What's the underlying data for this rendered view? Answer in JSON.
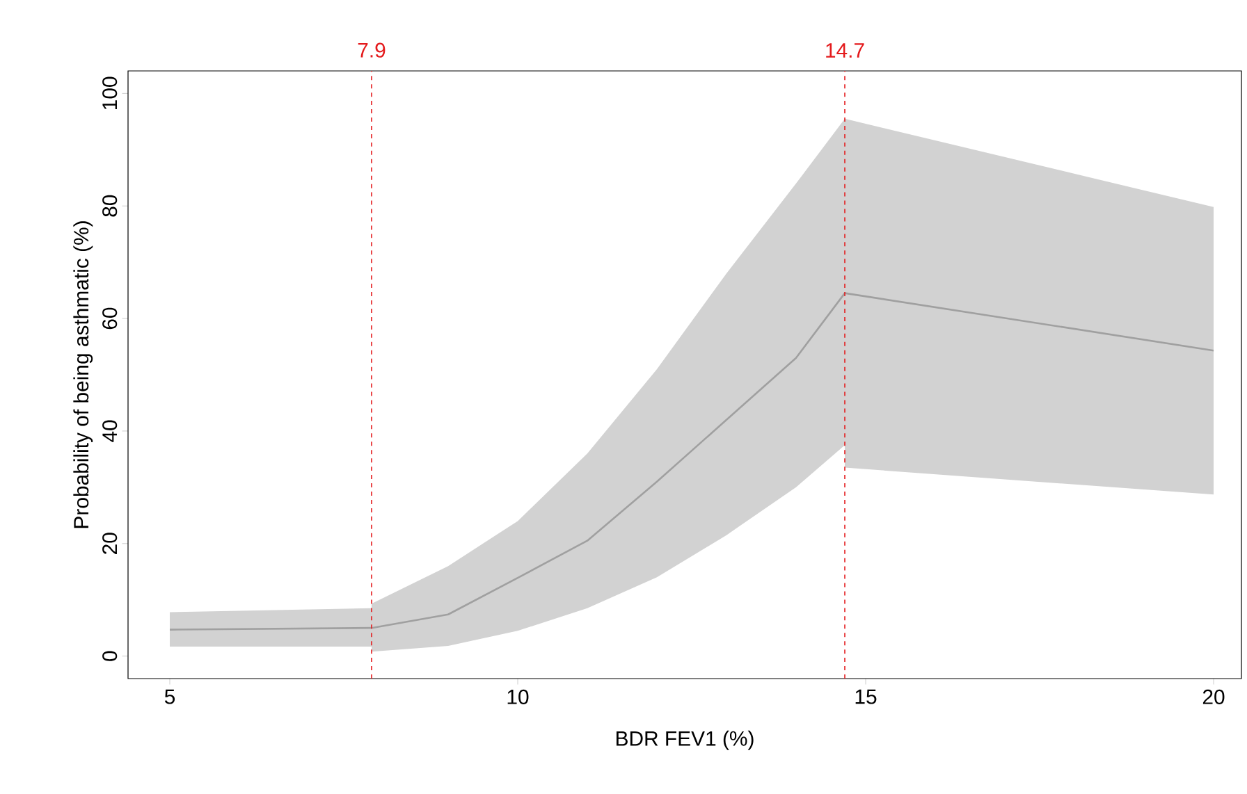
{
  "chart_data": {
    "type": "line",
    "xlabel": "BDR FEV1 (%)",
    "ylabel": "Probability of being asthmatic (%)",
    "xlim": [
      4.4,
      20.4
    ],
    "ylim": [
      -4,
      104
    ],
    "xticks": [
      5,
      10,
      15,
      20
    ],
    "yticks": [
      0,
      20,
      40,
      60,
      80,
      100
    ],
    "grid": false,
    "marker": "none",
    "line_style": "solid",
    "series": [
      {
        "color": "#a0a0a0",
        "x": [
          5,
          7.9,
          7.9,
          9,
          10,
          11,
          12,
          13,
          14,
          14.7,
          14.7,
          20
        ],
        "values": [
          4.7,
          5.0,
          5.0,
          7.4,
          13.9,
          20.5,
          31,
          42,
          53,
          64.5,
          64.5,
          54.3
        ],
        "lower": [
          1.7,
          1.7,
          0.8,
          1.8,
          4.5,
          8.5,
          14,
          21.5,
          30,
          37.5,
          33.5,
          28.7
        ],
        "upper": [
          7.8,
          8.5,
          9.3,
          16,
          24,
          36,
          51,
          68,
          84,
          95.5,
          95.5,
          79.8
        ]
      }
    ],
    "ref_lines": [
      {
        "axis": "x",
        "value": 7.9,
        "label": "7.9",
        "color": "#e41a1c",
        "line_style": "dashed"
      },
      {
        "axis": "x",
        "value": 14.7,
        "label": "14.7",
        "color": "#e41a1c",
        "line_style": "dashed"
      }
    ]
  }
}
